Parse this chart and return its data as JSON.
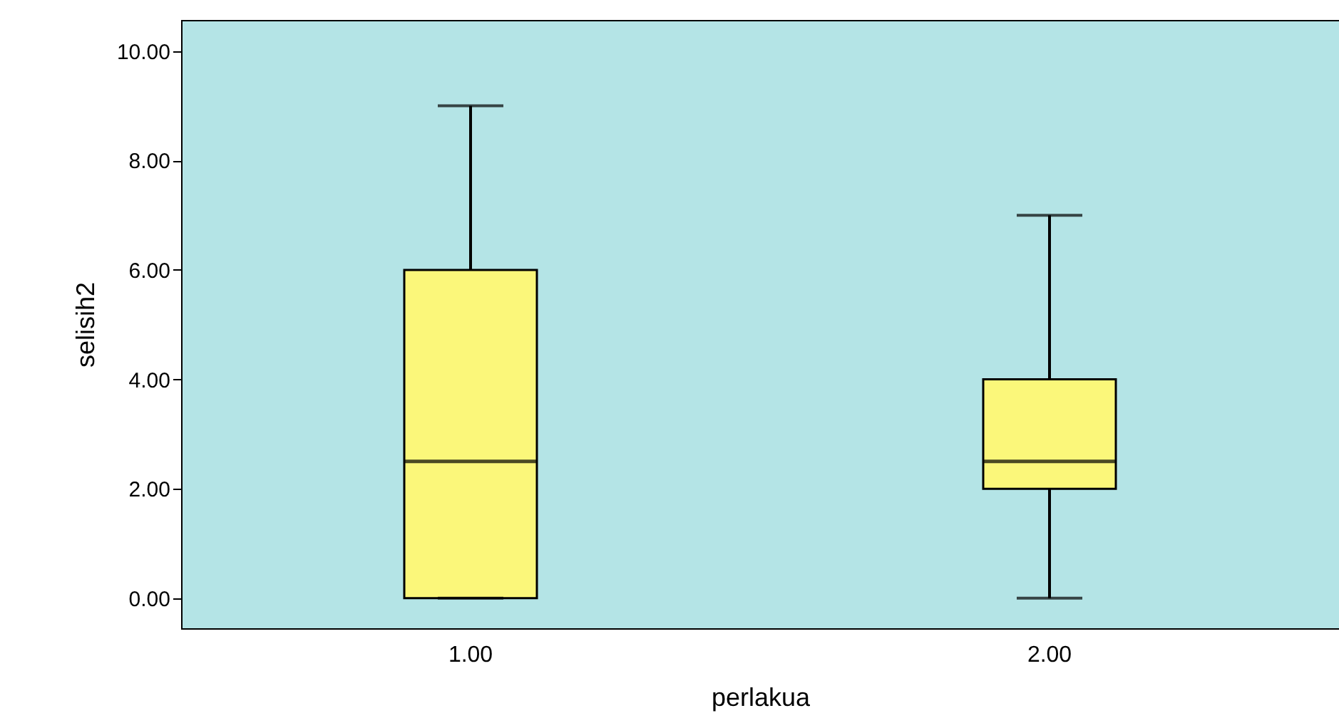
{
  "chart_data": {
    "type": "box",
    "xlabel": "perlakua",
    "ylabel": "selisih2",
    "categories": [
      "1.00",
      "2.00"
    ],
    "boxes": [
      {
        "low": 0,
        "q1": 0,
        "median": 2.5,
        "q3": 6,
        "high": 9
      },
      {
        "low": 0,
        "q1": 2,
        "median": 2.5,
        "q3": 4,
        "high": 7
      }
    ],
    "color": "#fbf77a",
    "ylim": [
      -0.55,
      10.57
    ],
    "yticks": [
      {
        "value": 0,
        "label": "0.00"
      },
      {
        "value": 2,
        "label": "2.00"
      },
      {
        "value": 4,
        "label": "4.00"
      },
      {
        "value": 6,
        "label": "6.00"
      },
      {
        "value": 8,
        "label": "8.00"
      },
      {
        "value": 10,
        "label": "10.00"
      }
    ],
    "grid": false
  }
}
